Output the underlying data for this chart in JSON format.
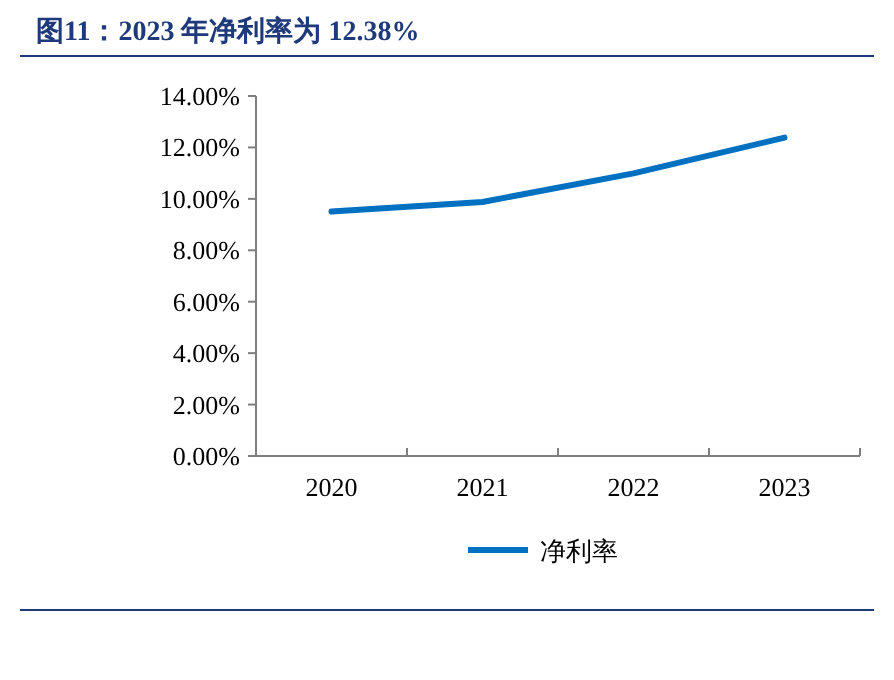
{
  "chart_data": {
    "type": "line",
    "title": "图11：2023 年净利率为 12.38%",
    "categories": [
      "2020",
      "2021",
      "2022",
      "2023"
    ],
    "series": [
      {
        "name": "净利率",
        "color": "#0070c0",
        "values": [
          9.51,
          9.88,
          10.99,
          12.38
        ]
      }
    ],
    "ylim": [
      0,
      14
    ],
    "yticks": [
      {
        "value": 0,
        "label": "0.00%"
      },
      {
        "value": 2,
        "label": "2.00%"
      },
      {
        "value": 4,
        "label": "4.00%"
      },
      {
        "value": 6,
        "label": "6.00%"
      },
      {
        "value": 8,
        "label": "8.00%"
      },
      {
        "value": 10,
        "label": "10.00%"
      },
      {
        "value": 12,
        "label": "12.00%"
      },
      {
        "value": 14,
        "label": "14.00%"
      }
    ],
    "grid": false,
    "legend": "bottom"
  }
}
